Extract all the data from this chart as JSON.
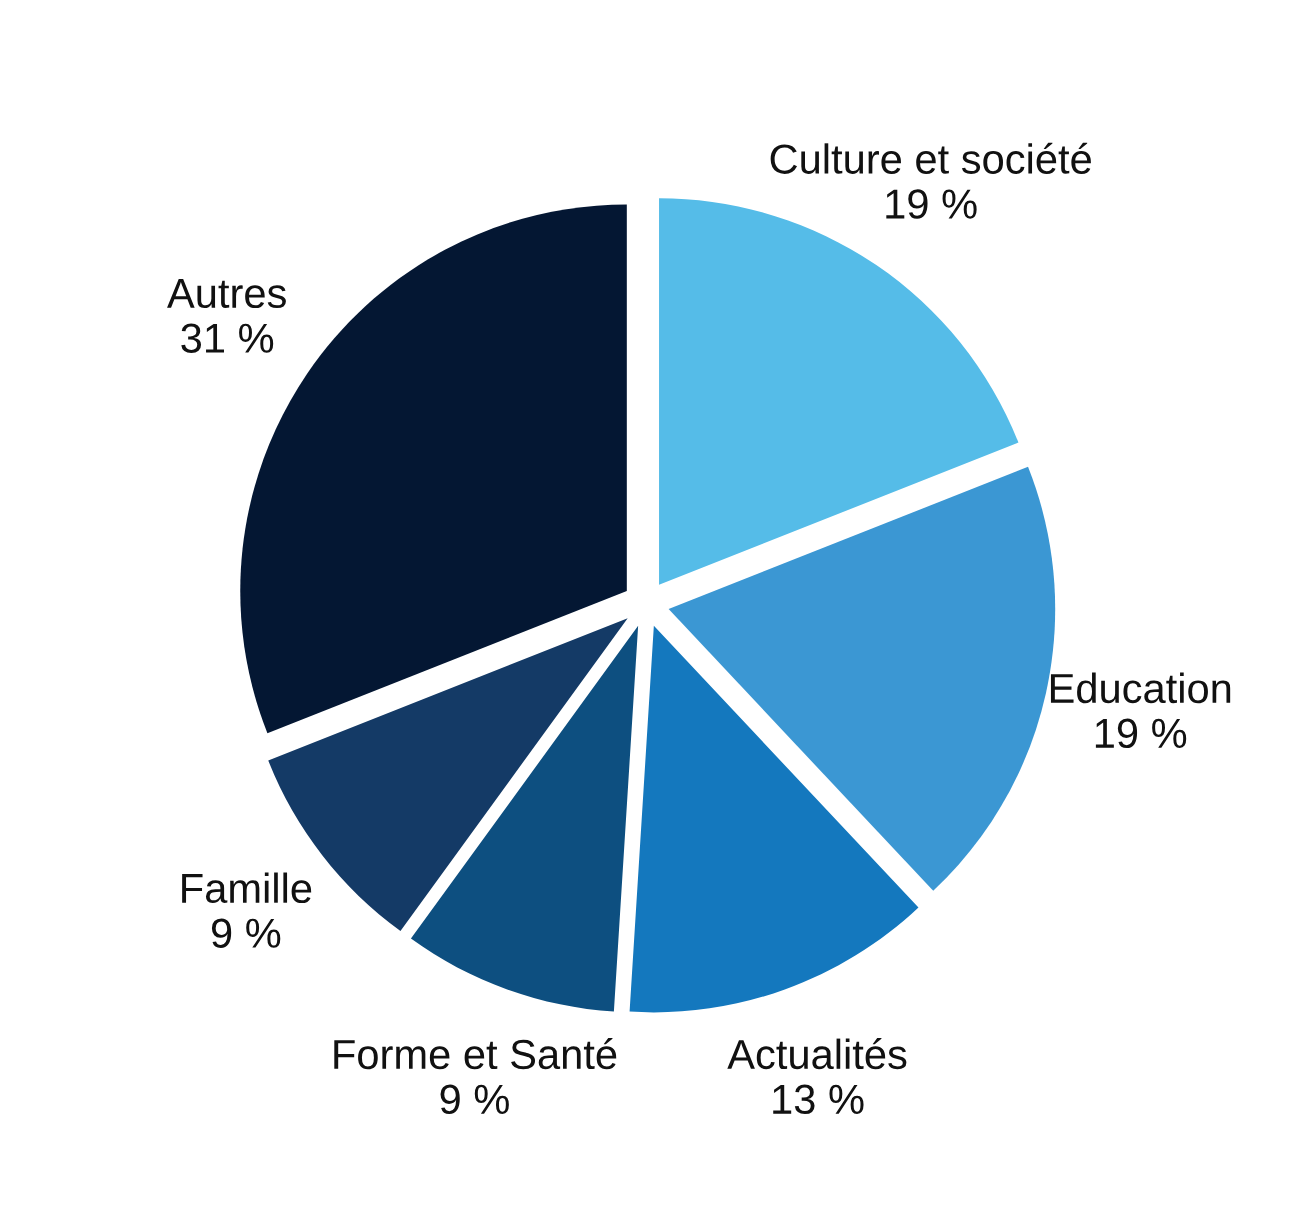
{
  "chart_data": {
    "type": "pie",
    "categories": [
      "Culture et société",
      "Education",
      "Actualités",
      "Forme et Santé",
      "Famille",
      "Autres"
    ],
    "values": [
      19,
      19,
      13,
      9,
      9,
      31
    ],
    "value_labels": [
      "19 %",
      "19 %",
      "13 %",
      "9 %",
      "9 %",
      "31 %"
    ],
    "colors": [
      "#55bce8",
      "#3b97d3",
      "#1478be",
      "#0d4f80",
      "#143a66",
      "#041733"
    ]
  }
}
